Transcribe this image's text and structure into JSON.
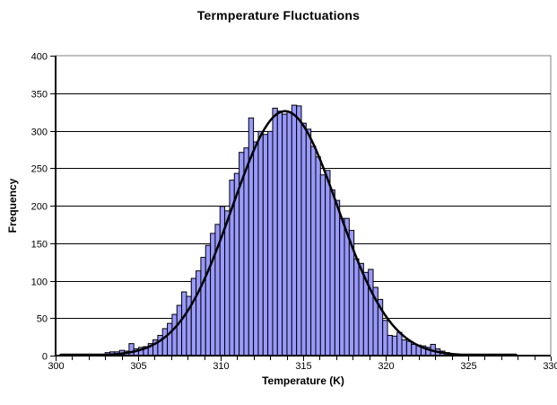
{
  "page": {
    "background": "#FFFFFF"
  },
  "chart_data": {
    "type": "histogram_with_fit_line",
    "title": "Termperature Fluctuations",
    "xlabel": "Temperature (K)",
    "ylabel": "Frequency",
    "xlim": [
      300,
      330
    ],
    "ylim": [
      0,
      400
    ],
    "x_major_ticks": [
      300,
      305,
      310,
      315,
      320,
      325,
      330
    ],
    "x_minor_tick_step": 1,
    "y_ticks": [
      0,
      50,
      100,
      150,
      200,
      250,
      300,
      350,
      400
    ],
    "grid": "horizontal",
    "legend": "none",
    "bins": {
      "start": 303.0,
      "width": 0.29,
      "frequencies": [
        4,
        5,
        5,
        7,
        6,
        16,
        9,
        11,
        12,
        16,
        21,
        27,
        36,
        43,
        55,
        67,
        85,
        79,
        103,
        113,
        131,
        147,
        163,
        175,
        199,
        193,
        234,
        243,
        271,
        277,
        317,
        285,
        299,
        295,
        299,
        330,
        326,
        322,
        325,
        334,
        333,
        310,
        302,
        279,
        265,
        241,
        247,
        221,
        207,
        183,
        183,
        167,
        129,
        123,
        111,
        115,
        91,
        75,
        47,
        27,
        26,
        31,
        21,
        19,
        15,
        14,
        13,
        11,
        15,
        9,
        6,
        4,
        2
      ]
    },
    "fit_curve": {
      "shape": "gaussian",
      "amplitude": 326,
      "mean": 313.9,
      "sigma": 3.2,
      "x_range": [
        300.3,
        328.0
      ]
    },
    "colors": {
      "bar_fill": "#9999FF",
      "bar_border": "#000000",
      "gridline": "#000000",
      "plot_border": "#808080",
      "axis": "#000000",
      "curve": "#000000",
      "plot_background": "#FFFFFF",
      "text": "#000000"
    }
  }
}
